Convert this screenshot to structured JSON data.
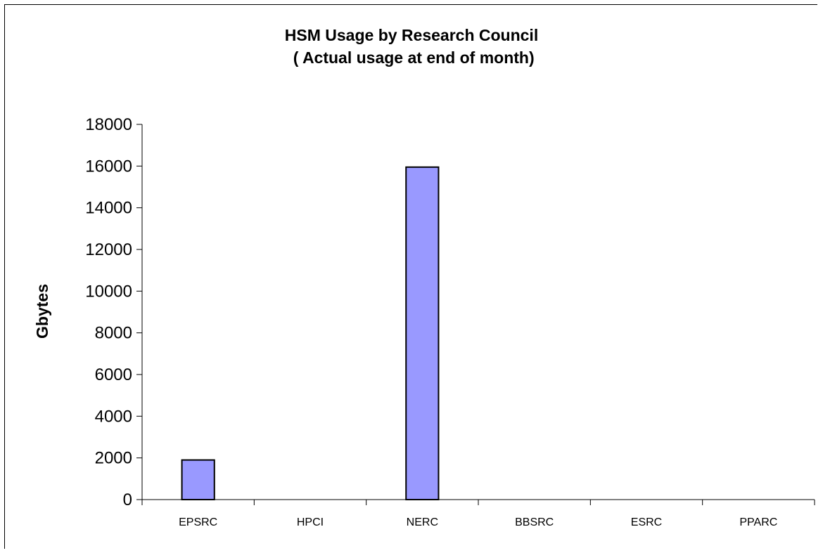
{
  "chart_data": {
    "type": "bar",
    "title": "HSM Usage by Research Council",
    "subtitle": " ( Actual usage at end of month)",
    "xlabel": "",
    "ylabel": "Gbytes",
    "categories": [
      "EPSRC",
      "HPCI",
      "NERC",
      "BBSRC",
      "ESRC",
      "PPARC"
    ],
    "series": [
      {
        "values": [
          1900,
          0,
          15950,
          0,
          0,
          0
        ]
      }
    ],
    "ylim": [
      0,
      18000
    ],
    "yticks": [
      "0",
      "2000",
      "4000",
      "6000",
      "8000",
      "10000",
      "12000",
      "14000",
      "16000",
      "18000"
    ],
    "grid": false,
    "legend": "none",
    "bar_color": "#9999ff"
  }
}
